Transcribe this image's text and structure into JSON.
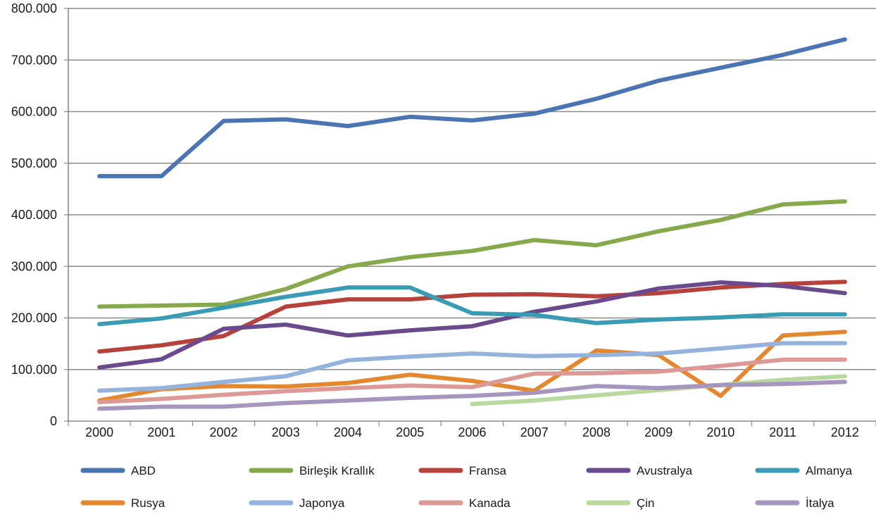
{
  "chart_data": {
    "type": "line",
    "title": "",
    "xlabel": "",
    "ylabel": "",
    "x": [
      "2000",
      "2001",
      "2002",
      "2003",
      "2004",
      "2005",
      "2006",
      "2007",
      "2008",
      "2009",
      "2010",
      "2011",
      "2012"
    ],
    "ylim": [
      0,
      800000
    ],
    "yticks": [
      0,
      100000,
      200000,
      300000,
      400000,
      500000,
      600000,
      700000,
      800000
    ],
    "ytick_labels": [
      "0",
      "100.000",
      "200.000",
      "300.000",
      "400.000",
      "500.000",
      "600.000",
      "700.000",
      "800.000"
    ],
    "grid": true,
    "legend_position": "bottom",
    "series": [
      {
        "name": "ABD",
        "color": "#4a74b2",
        "values": [
          475000,
          475000,
          582000,
          585000,
          572000,
          590000,
          583000,
          596000,
          625000,
          660000,
          685000,
          710000,
          740000
        ]
      },
      {
        "name": "Birleşik Krallık",
        "color": "#86a94b",
        "values": [
          222000,
          224000,
          226000,
          256000,
          300000,
          318000,
          330000,
          351000,
          341000,
          368000,
          390000,
          420000,
          426000
        ]
      },
      {
        "name": "Fransa",
        "color": "#b7413b",
        "values": [
          135000,
          147000,
          165000,
          222000,
          236000,
          236000,
          245000,
          246000,
          242000,
          248000,
          259000,
          266000,
          270000
        ]
      },
      {
        "name": "Avustralya",
        "color": "#6a4a8c",
        "values": [
          104000,
          120000,
          179000,
          187000,
          166000,
          176000,
          184000,
          212000,
          232000,
          257000,
          269000,
          262000,
          248000
        ]
      },
      {
        "name": "Almanya",
        "color": "#3a9bb4",
        "values": [
          188000,
          199000,
          220000,
          241000,
          259000,
          259000,
          209000,
          206000,
          190000,
          197000,
          201000,
          207000,
          207000
        ]
      },
      {
        "name": "Rusya",
        "color": "#e4882f",
        "values": [
          40000,
          62000,
          68000,
          67000,
          74000,
          90000,
          78000,
          59000,
          137000,
          128000,
          49000,
          166000,
          173000
        ]
      },
      {
        "name": "Japonya",
        "color": "#93b2dc",
        "values": [
          59000,
          64000,
          76000,
          87000,
          118000,
          125000,
          131000,
          126000,
          128000,
          131000,
          141000,
          151000,
          151000
        ]
      },
      {
        "name": "Kanada",
        "color": "#dd9995",
        "values": [
          37000,
          43000,
          51000,
          58000,
          64000,
          69000,
          66000,
          92000,
          93000,
          96000,
          107000,
          119000,
          119000
        ]
      },
      {
        "name": "Çin",
        "color": "#b9d89d",
        "values": [
          null,
          null,
          null,
          null,
          null,
          null,
          33000,
          40000,
          50000,
          60000,
          70000,
          80000,
          87000
        ]
      },
      {
        "name": "İtalya",
        "color": "#a696bf",
        "values": [
          24000,
          28000,
          28000,
          35000,
          40000,
          45000,
          49000,
          55000,
          68000,
          64000,
          70000,
          72000,
          76000
        ]
      }
    ]
  }
}
